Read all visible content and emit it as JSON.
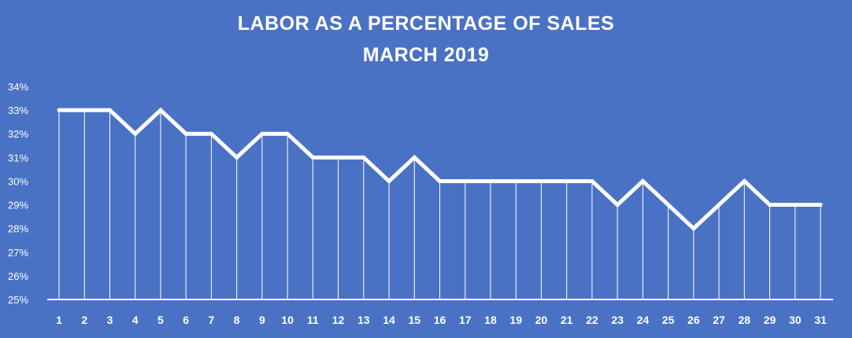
{
  "colors": {
    "background": "#4a72c4",
    "line": "#ffffff",
    "text": "#ffffff"
  },
  "chart_data": {
    "type": "line",
    "title": "LABOR AS A PERCENTAGE OF SALES",
    "subtitle": "MARCH 2019",
    "xlabel": "",
    "ylabel": "",
    "x": [
      1,
      2,
      3,
      4,
      5,
      6,
      7,
      8,
      9,
      10,
      11,
      12,
      13,
      14,
      15,
      16,
      17,
      18,
      19,
      20,
      21,
      22,
      23,
      24,
      25,
      26,
      27,
      28,
      29,
      30,
      31
    ],
    "y_ticks": [
      "25%",
      "26%",
      "27%",
      "28%",
      "29%",
      "30%",
      "31%",
      "32%",
      "33%",
      "34%"
    ],
    "ylim": [
      25,
      34
    ],
    "grid": false,
    "drop_lines": true,
    "series": [
      {
        "values": [
          33,
          33,
          33,
          32,
          33,
          32,
          32,
          31,
          32,
          32,
          31,
          31,
          31,
          30,
          31,
          30,
          30,
          30,
          30,
          30,
          30,
          30,
          29,
          30,
          29,
          28,
          29,
          30,
          29,
          29,
          29
        ]
      }
    ]
  }
}
